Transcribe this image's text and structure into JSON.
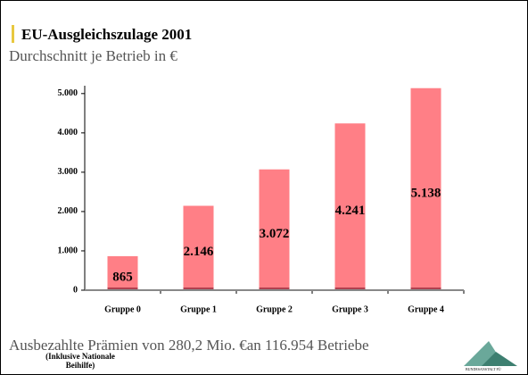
{
  "chart_data": {
    "type": "bar",
    "title": "EU-Ausgleichszulage 2001",
    "subtitle": "Durchschnitt je Betrieb in €",
    "categories": [
      "Gruppe 0",
      "Gruppe 1",
      "Gruppe 2",
      "Gruppe 3",
      "Gruppe 4"
    ],
    "values": [
      865,
      2146,
      3072,
      4241,
      5138
    ],
    "value_labels": [
      "865",
      "2.146",
      "3.072",
      "4.241",
      "5.138"
    ],
    "color": "#ff7f86",
    "ylim": [
      0,
      5200
    ],
    "yticks": [
      0,
      {
        "value": 1000,
        "label": "1.000"
      },
      {
        "value": 2000,
        "label": "2.000"
      },
      {
        "value": 3000,
        "label": "3.000"
      },
      {
        "value": 4000,
        "label": "4.000"
      },
      {
        "value": 5000,
        "label": "5.000"
      }
    ],
    "grid": false,
    "footnote": "Ausbezahlte Prämien von 280,2 Mio. €an 116.954 Betriebe",
    "note": "(Inklusive Nationale Beihilfe)",
    "logo_text": "BUNDESANSTALT FÜ"
  }
}
